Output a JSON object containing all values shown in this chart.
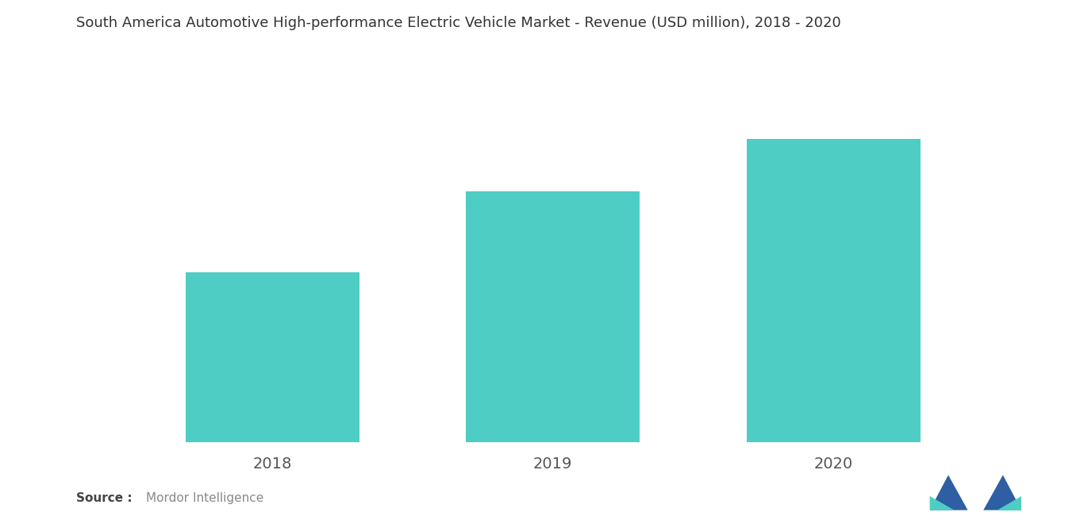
{
  "title": "South America Automotive High-performance Electric Vehicle Market - Revenue (USD million), 2018 - 2020",
  "categories": [
    "2018",
    "2019",
    "2020"
  ],
  "values": [
    42,
    62,
    75
  ],
  "bar_color": "#4ECDC4",
  "background_color": "#ffffff",
  "title_fontsize": 13,
  "tick_fontsize": 14,
  "ylim": [
    0,
    90
  ],
  "bar_width": 0.62,
  "logo_dark_blue": "#2E5FA3",
  "logo_teal": "#4ECDC4"
}
